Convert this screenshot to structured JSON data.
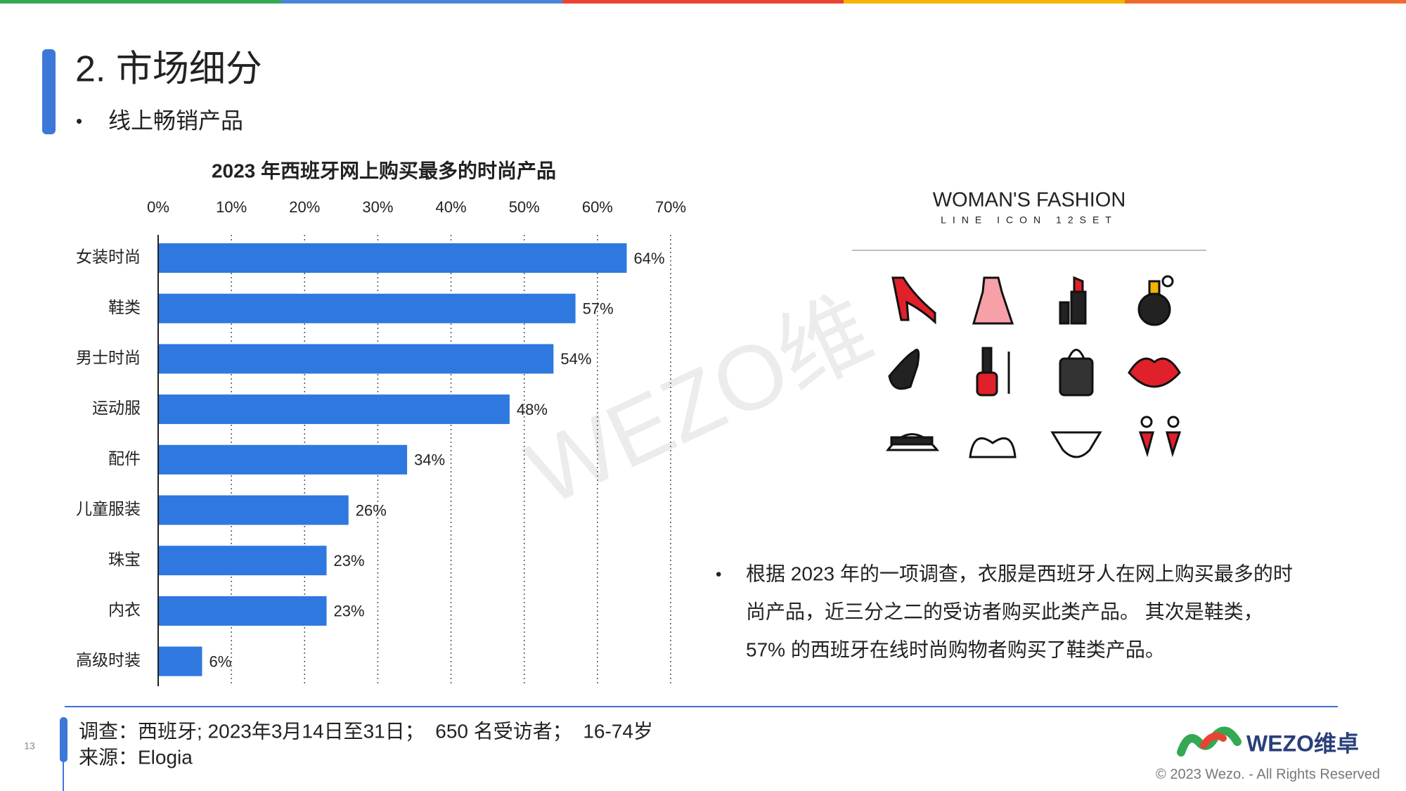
{
  "header": {
    "title": "2. 市场细分",
    "subtitle": "线上畅销产品"
  },
  "chart_data": {
    "type": "hbar",
    "title": "2023 年西班牙网上购买最多的时尚产品",
    "categories": [
      "女装时尚",
      "鞋类",
      "男士时尚",
      "运动服",
      "配件",
      "儿童服装",
      "珠宝",
      "内衣",
      "高级时装"
    ],
    "values": [
      64,
      57,
      54,
      48,
      34,
      26,
      23,
      23,
      6
    ],
    "value_labels": [
      "64%",
      "57%",
      "54%",
      "48%",
      "34%",
      "26%",
      "23%",
      "23%",
      "6%"
    ],
    "color": "#2e78e0",
    "xlim": [
      0,
      70
    ],
    "xticks": [
      {
        "value": 0,
        "label": "0%"
      },
      {
        "value": 10,
        "label": "10%"
      },
      {
        "value": 20,
        "label": "20%"
      },
      {
        "value": 30,
        "label": "30%"
      },
      {
        "value": 40,
        "label": "40%"
      },
      {
        "value": 50,
        "label": "50%"
      },
      {
        "value": 60,
        "label": "60%"
      },
      {
        "value": 70,
        "label": "70%"
      }
    ],
    "grid": true
  },
  "watermark": "WEZO维",
  "icon_panel": {
    "title": "WOMAN'S FASHION",
    "subtitle": "LINE ICON 12SET"
  },
  "note": {
    "lines": [
      "根据 2023 年的一项调查，衣服是西班牙人在网上购买最多的时",
      "尚产品，近三分之二的受访者购买此类产品。 其次是鞋类，",
      "57% 的西班牙在线时尚购物者购买了鞋类产品。"
    ]
  },
  "footer": {
    "page": "13",
    "survey": "调查：西班牙; 2023年3月14日至31日；  650 名受访者；  16-74岁",
    "source": "来源：Elogia",
    "logo": "WEZO维卓",
    "copyright": "© 2023 Wezo. - All Rights Reserved"
  }
}
